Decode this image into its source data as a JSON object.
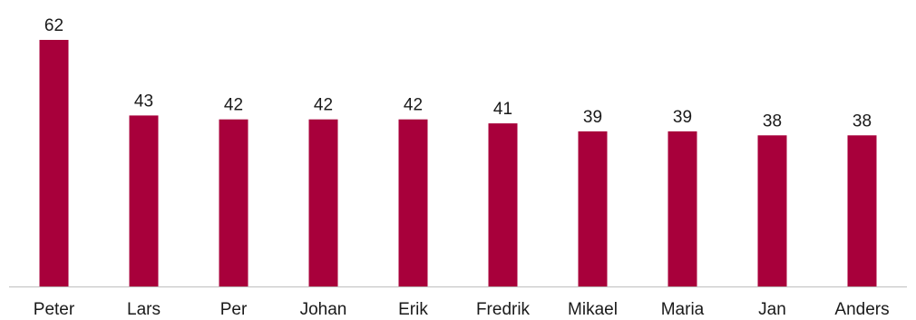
{
  "chart_data": {
    "type": "bar",
    "categories": [
      "Peter",
      "Lars",
      "Per",
      "Johan",
      "Erik",
      "Fredrik",
      "Mikael",
      "Maria",
      "Jan",
      "Anders"
    ],
    "values": [
      62,
      43,
      42,
      42,
      42,
      41,
      39,
      39,
      38,
      38
    ],
    "title": "",
    "xlabel": "",
    "ylabel": "",
    "ylim": [
      0,
      62
    ],
    "grid": false,
    "legend": "none",
    "data_labels": true,
    "bar_color": "#a8003b",
    "axis_color": "#bfbfbf"
  }
}
